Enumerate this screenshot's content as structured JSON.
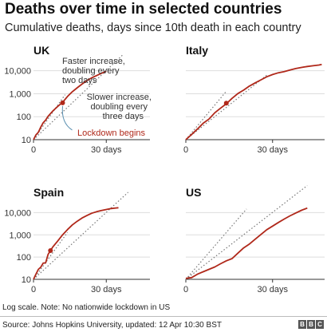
{
  "title": "Deaths over time in selected countries",
  "subtitle": "Cumulative deaths, days since 10th death in each country",
  "footer": {
    "note": "Log scale. Note: No nationwide lockdown in US",
    "source": "Source: Johns Hopkins University, updated:  12 Apr 10:30 BST",
    "logo_letters": [
      "B",
      "B",
      "C"
    ]
  },
  "colors": {
    "series": "#b0281a",
    "reference": "#777777",
    "grid": "#dddddd",
    "axis": "#333333",
    "annotation": "#333333"
  },
  "chart_data": [
    {
      "type": "line",
      "panel": "UK",
      "title": "UK",
      "scale": "log",
      "xlim": [
        0,
        48
      ],
      "ylim": [
        10,
        20000
      ],
      "xticks": [
        0,
        30
      ],
      "xtick_labels": [
        "0",
        "30 days"
      ],
      "yticks": [
        10,
        100,
        1000,
        10000
      ],
      "ytick_labels": [
        "10",
        "100",
        "1,000",
        "10,000"
      ],
      "grid": true,
      "series": [
        {
          "x": [
            0,
            1,
            2,
            3,
            4,
            5,
            6,
            8,
            10,
            12,
            14,
            16,
            18,
            20,
            22,
            24,
            26,
            28,
            30
          ],
          "y": [
            10,
            16,
            21,
            35,
            55,
            71,
            104,
            178,
            281,
            422,
            760,
            1230,
            1810,
            2620,
            3720,
            4940,
            6160,
            7760,
            9500
          ]
        }
      ],
      "reference_lines": [
        {
          "doubling_days": 2,
          "x_end": 13
        },
        {
          "doubling_days": 3,
          "x_end": 37
        }
      ],
      "lockdown_marker": {
        "x": 12,
        "y": 400
      },
      "annotations": [
        "Faster increase, doubling every two days",
        "Slower increase, doubling every three days",
        "Lockdown begins"
      ]
    },
    {
      "type": "line",
      "panel": "Italy",
      "title": "Italy",
      "scale": "log",
      "xlim": [
        0,
        48
      ],
      "ylim": [
        10,
        20000
      ],
      "xticks": [
        0,
        30
      ],
      "xtick_labels": [
        "0",
        "30 days"
      ],
      "yticks": [
        10,
        100,
        1000,
        10000
      ],
      "ytick_labels": [],
      "grid": true,
      "series": [
        {
          "x": [
            0,
            2,
            4,
            6,
            8,
            10,
            12,
            14,
            16,
            18,
            20,
            22,
            24,
            26,
            28,
            30,
            32,
            34,
            36,
            38,
            40,
            42,
            44,
            46,
            47
          ],
          "y": [
            10,
            17,
            29,
            52,
            79,
            148,
            233,
            366,
            631,
            1016,
            1441,
            2158,
            2978,
            4032,
            5476,
            6820,
            8165,
            9134,
            10779,
            12428,
            13915,
            15362,
            16523,
            17669,
            18849
          ]
        }
      ],
      "reference_lines": [
        {
          "doubling_days": 2,
          "x_end": 14
        },
        {
          "doubling_days": 3,
          "x_end": 28
        }
      ],
      "lockdown_marker": {
        "x": 14,
        "y": 390
      }
    },
    {
      "type": "line",
      "panel": "Spain",
      "title": "Spain",
      "scale": "log",
      "xlim": [
        0,
        48
      ],
      "ylim": [
        10,
        20000
      ],
      "xticks": [
        0,
        30
      ],
      "xtick_labels": [
        "0",
        "30 days"
      ],
      "yticks": [
        10,
        100,
        1000,
        10000
      ],
      "ytick_labels": [
        "10",
        "100",
        "1,000",
        "10,000"
      ],
      "grid": true,
      "series": [
        {
          "x": [
            0,
            1,
            2,
            3,
            4,
            5,
            6,
            7,
            8,
            10,
            12,
            14,
            16,
            18,
            20,
            22,
            24,
            26,
            28,
            30,
            32,
            34,
            35
          ],
          "y": [
            10,
            17,
            28,
            35,
            54,
            55,
            133,
            195,
            289,
            533,
            1002,
            1720,
            2808,
            4089,
            5690,
            7340,
            9387,
            10935,
            12418,
            13798,
            15238,
            16081,
            16606
          ]
        }
      ],
      "reference_lines": [
        {
          "doubling_days": 2,
          "x_end": 14
        },
        {
          "doubling_days": 3,
          "x_end": 39
        }
      ],
      "lockdown_marker": {
        "x": 7,
        "y": 195
      }
    },
    {
      "type": "line",
      "panel": "US",
      "title": "US",
      "scale": "log",
      "xlim": [
        0,
        48
      ],
      "ylim": [
        10,
        20000
      ],
      "xticks": [
        0,
        30
      ],
      "xtick_labels": [
        "0",
        "30 days"
      ],
      "yticks": [
        10,
        100,
        1000,
        10000
      ],
      "ytick_labels": [],
      "grid": true,
      "series": [
        {
          "x": [
            0,
            2,
            4,
            6,
            8,
            10,
            12,
            14,
            16,
            18,
            20,
            22,
            24,
            26,
            28,
            30,
            32,
            34,
            36,
            38,
            40,
            42
          ],
          "y": [
            11,
            12,
            17,
            22,
            28,
            36,
            50,
            68,
            86,
            150,
            260,
            390,
            640,
            1050,
            1700,
            2470,
            3600,
            5100,
            7100,
            9600,
            12700,
            16000
          ]
        }
      ],
      "reference_lines": [
        {
          "doubling_days": 2,
          "x_end": 21
        },
        {
          "doubling_days": 3,
          "x_end": 42
        }
      ]
    }
  ]
}
